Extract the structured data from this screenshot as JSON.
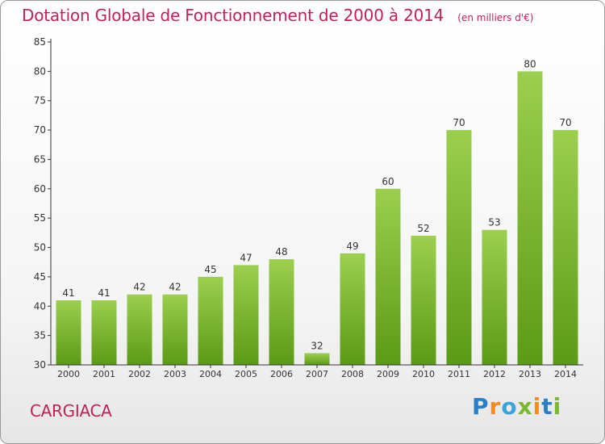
{
  "header": {
    "title": "Dotation Globale de Fonctionnement de 2000 à 2014",
    "subtitle": "(en milliers d'€)"
  },
  "footer": {
    "commune": "CARGIACA",
    "logo_text": "Proxiti"
  },
  "colors": {
    "title": "#c0215b",
    "bar_top": "#9ccf4e",
    "bar_bottom": "#5c9a16",
    "axis": "#333333"
  },
  "chart_data": {
    "type": "bar",
    "title": "Dotation Globale de Fonctionnement de 2000 à 2014",
    "subtitle": "(en milliers d'€)",
    "categories": [
      "2000",
      "2001",
      "2002",
      "2003",
      "2004",
      "2005",
      "2006",
      "2007",
      "2008",
      "2009",
      "2010",
      "2011",
      "2012",
      "2013",
      "2014"
    ],
    "values": [
      41,
      41,
      42,
      42,
      45,
      47,
      48,
      32,
      49,
      60,
      52,
      70,
      53,
      80,
      70
    ],
    "xlabel": "",
    "ylabel": "",
    "ylim": [
      30,
      85
    ],
    "yticks": [
      30,
      35,
      40,
      45,
      50,
      55,
      60,
      65,
      70,
      75,
      80,
      85
    ],
    "grid": false,
    "legend": "none"
  }
}
